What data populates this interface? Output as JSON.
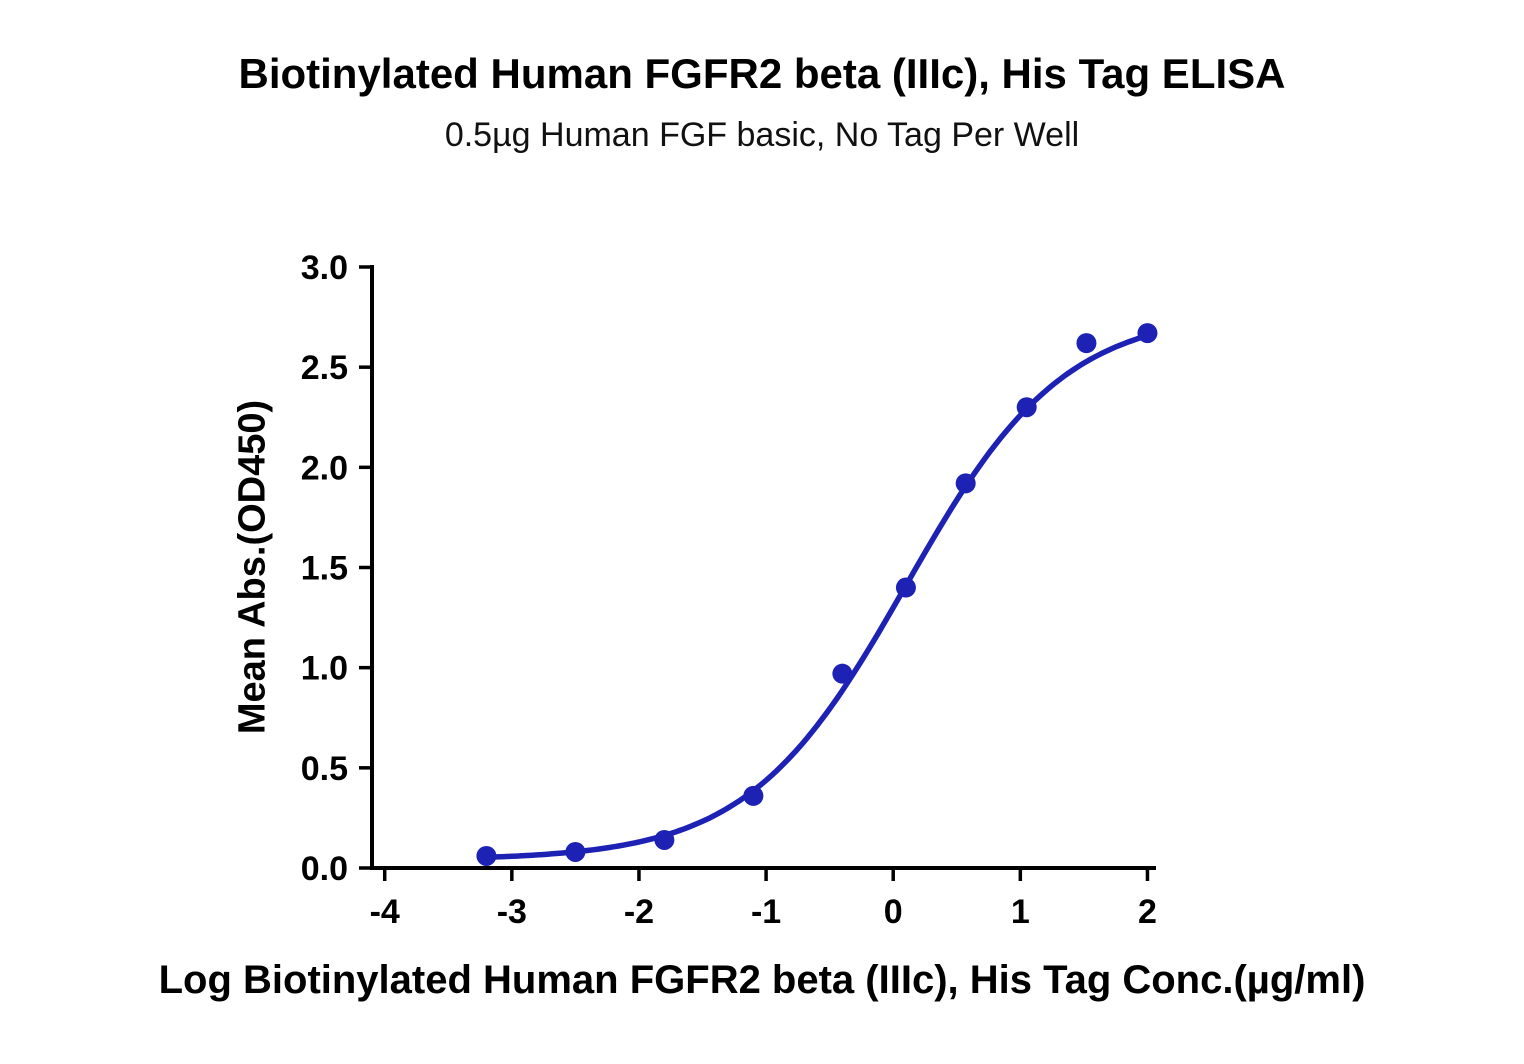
{
  "title": "Biotinylated Human FGFR2 beta (IIIc), His Tag ELISA",
  "subtitle": "0.5µg Human FGF basic, No Tag Per Well",
  "chart_data": {
    "type": "scatter",
    "title": "Biotinylated Human FGFR2 beta (IIIc), His Tag ELISA",
    "subtitle": "0.5µg Human FGF basic, No Tag Per Well",
    "xlabel": "Log Biotinylated Human FGFR2 beta (IIIc), His Tag Conc.(µg/ml)",
    "ylabel": "Mean Abs.(OD450)",
    "xlim": [
      -4.1,
      2.02
    ],
    "ylim": [
      0,
      3
    ],
    "xticks": [
      -4,
      -3,
      -2,
      -1,
      0,
      1,
      2
    ],
    "xtick_labels": [
      "-4",
      "-3",
      "-2",
      "-1",
      "0",
      "1",
      "2"
    ],
    "yticks": [
      0.0,
      0.5,
      1.0,
      1.5,
      2.0,
      2.5,
      3.0
    ],
    "ytick_labels": [
      "0.0",
      "0.5",
      "1.0",
      "1.5",
      "2.0",
      "2.5",
      "3.0"
    ],
    "grid": false,
    "legend": null,
    "series": [
      {
        "name": "Biotinylated Human FGFR2 beta (IIIc), His Tag",
        "x": [
          -3.2,
          -2.5,
          -1.8,
          -1.1,
          -0.4,
          0.1,
          0.57,
          1.05,
          1.52,
          2.0
        ],
        "y": [
          0.06,
          0.08,
          0.14,
          0.36,
          0.97,
          1.4,
          1.92,
          2.3,
          2.62,
          2.67
        ]
      }
    ],
    "fit_curve": {
      "model": "4PL",
      "bottom": 0.04,
      "top": 2.78,
      "logEC50": 0.1,
      "hillslope": 0.7,
      "x_start": -3.2,
      "x_end": 2.0
    },
    "colors": {
      "series": "#1E22B4",
      "axis": "#000000",
      "background": "#ffffff"
    }
  }
}
